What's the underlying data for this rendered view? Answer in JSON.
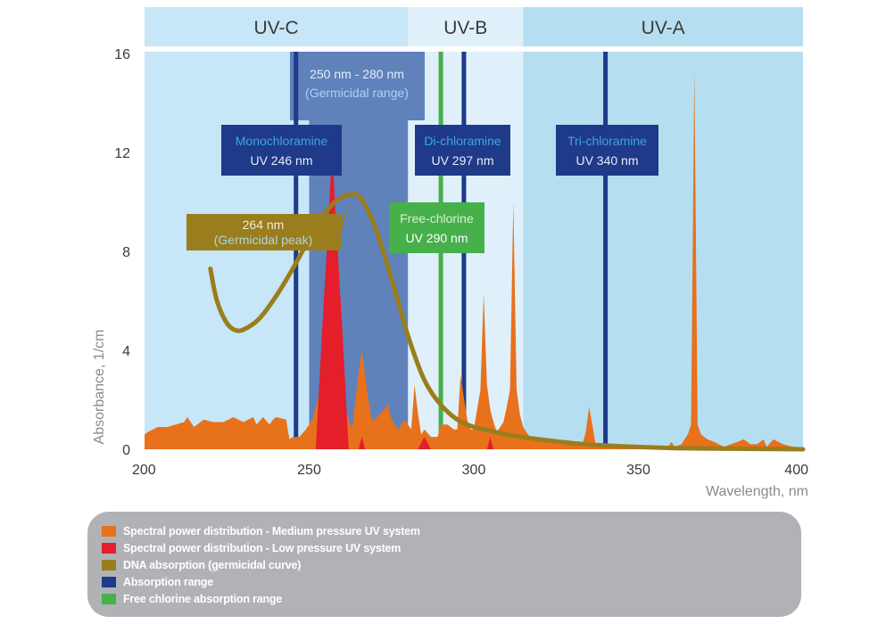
{
  "chart_data": {
    "type": "area",
    "title": "",
    "xlabel": "Wavelength, nm",
    "ylabel": "Absorbance, 1/cm",
    "xlim": [
      200,
      400
    ],
    "ylim": [
      0,
      16
    ],
    "x_ticks": [
      200,
      250,
      300,
      350,
      400
    ],
    "x_tick_labels": [
      "200",
      "250",
      "300",
      "350",
      "400"
    ],
    "y_ticks": [
      0,
      4,
      8,
      12,
      16
    ],
    "y_tick_labels": [
      "0",
      "4",
      "8",
      "12",
      "16"
    ],
    "grid": false,
    "bands": [
      {
        "name": "UV-C",
        "label": "UV-C",
        "range": [
          200,
          280
        ],
        "color": "#c7e6f7"
      },
      {
        "name": "UV-B",
        "label": "UV-B",
        "range": [
          280,
          315
        ],
        "color": "#dff0fb"
      },
      {
        "name": "UV-A",
        "label": "UV-A",
        "range": [
          315,
          400
        ],
        "color": "#b5dff1"
      }
    ],
    "germicidal_range": {
      "range": [
        250,
        280
      ],
      "label_line1": "250 nm - 280 nm",
      "label_line2": "(Germicidal range)",
      "color": "#5f82bb"
    },
    "absorption_lines": [
      {
        "name": "monochloramine",
        "x": 246,
        "label_line1": "Monochloramine",
        "label_line2": "UV 246 nm",
        "color": "#1f3a88"
      },
      {
        "name": "di-chloramine",
        "x": 297,
        "label_line1": "Di-chloramine",
        "label_line2": "UV 297 nm",
        "color": "#1f3a88"
      },
      {
        "name": "tri-chloramine",
        "x": 340,
        "label_line1": "Tri-chloramine",
        "label_line2": "UV 340 nm",
        "color": "#1f3a88"
      },
      {
        "name": "free-chlorine",
        "x": 290,
        "label_line1": "Free-chlorine",
        "label_line2": "UV 290 nm",
        "color": "#46b04a"
      }
    ],
    "annotations": [
      {
        "name": "germicidal-peak",
        "x": 264,
        "label_line1": "264 nm",
        "label_line2": "(Germicidal peak)",
        "color": "#9a7d1c"
      }
    ],
    "series": [
      {
        "name": "Spectral power distribution - Medium pressure UV system",
        "type": "area",
        "color": "#e8711c",
        "x": [
          200,
          201,
          204,
          207,
          212,
          213,
          215,
          218,
          221,
          224,
          227,
          230,
          233,
          234,
          236,
          238,
          239,
          240,
          243,
          244,
          245,
          247,
          249,
          251,
          253,
          255,
          257,
          258,
          260,
          262,
          263,
          265,
          266,
          268,
          269,
          270,
          272,
          274,
          275,
          277,
          279,
          281,
          282,
          283,
          284,
          285,
          287,
          289,
          290,
          292,
          294,
          295,
          296,
          298,
          299,
          300,
          301,
          302,
          303,
          304,
          305,
          306,
          307,
          309,
          310,
          311,
          312,
          313,
          314,
          315,
          317,
          319,
          321,
          324,
          327,
          330,
          333,
          334,
          335,
          336,
          337,
          339,
          342,
          345,
          350,
          355,
          357,
          359,
          360,
          361,
          363,
          365,
          366,
          367,
          368,
          369,
          371,
          373,
          376,
          378,
          380,
          382,
          384,
          386,
          388,
          389,
          391,
          394,
          397,
          400
        ],
        "values": [
          0.6,
          0.7,
          0.9,
          0.9,
          1.1,
          1.3,
          0.9,
          1.2,
          1.1,
          1.1,
          1.3,
          1.1,
          1.3,
          1.0,
          1.3,
          1.0,
          1.2,
          1.3,
          1.2,
          0.4,
          0.5,
          0.5,
          0.8,
          1.2,
          2.2,
          1.8,
          1.6,
          1.4,
          1.8,
          1.2,
          0.8,
          3.1,
          4.0,
          2.0,
          1.2,
          1.2,
          1.5,
          1.8,
          1.2,
          0.8,
          1.2,
          0.8,
          2.6,
          1.5,
          0.6,
          0.8,
          0.5,
          0.5,
          1.0,
          1.0,
          0.8,
          0.8,
          3.0,
          1.2,
          0.8,
          0.8,
          1.6,
          2.4,
          6.3,
          2.6,
          1.6,
          1.1,
          0.7,
          1.1,
          1.7,
          2.4,
          10.0,
          2.4,
          1.4,
          0.9,
          0.5,
          0.4,
          0.3,
          0.3,
          0.2,
          0.2,
          0.2,
          0.7,
          1.7,
          1.0,
          0.2,
          0.2,
          0.1,
          0.1,
          0.1,
          0.1,
          0.1,
          0.1,
          0.3,
          0.1,
          0.2,
          0.6,
          1.0,
          15.3,
          1.0,
          0.6,
          0.4,
          0.3,
          0.1,
          0.2,
          0.3,
          0.4,
          0.2,
          0.2,
          0.4,
          0.1,
          0.4,
          0.2,
          0.1,
          0.0
        ]
      },
      {
        "name": "Spectral power distribution - Low pressure UV system",
        "type": "area",
        "color": "#e41e2b",
        "x": [
          252,
          254,
          256,
          257,
          258,
          260,
          262,
          263,
          265,
          266,
          267,
          283,
          285,
          287,
          304,
          305,
          306
        ],
        "values": [
          0,
          5.0,
          9.5,
          12.3,
          9.5,
          5.0,
          0,
          0,
          0,
          0.5,
          0,
          0,
          0.5,
          0,
          0,
          0.5,
          0
        ]
      },
      {
        "name": "DNA absorption (germicidal curve)",
        "type": "line",
        "color": "#9a7d1c",
        "x": [
          220,
          222,
          225,
          228,
          231,
          235,
          240,
          245,
          250,
          255,
          260,
          263,
          264,
          266,
          270,
          275,
          280,
          285,
          290,
          295,
          300,
          305,
          310,
          320,
          330,
          340,
          360,
          380,
          400
        ],
        "values": [
          7.3,
          6.0,
          5.1,
          4.8,
          4.9,
          5.3,
          6.2,
          7.3,
          8.5,
          9.6,
          10.2,
          10.3,
          10.3,
          10.1,
          9.0,
          6.9,
          4.6,
          2.8,
          1.8,
          1.2,
          0.9,
          0.75,
          0.6,
          0.4,
          0.25,
          0.15,
          0.05,
          0.02,
          0.0
        ]
      },
      {
        "name": "Absorption range",
        "type": "vline",
        "color": "#1f3a88"
      },
      {
        "name": "Free chlorine absorption range",
        "type": "vline",
        "color": "#46b04a"
      }
    ]
  },
  "legend": {
    "placement": "bottom",
    "items": [
      {
        "label": "Spectral power distribution - Medium pressure UV system",
        "color": "#e8711c"
      },
      {
        "label": "Spectral power distribution - Low pressure UV system",
        "color": "#e41e2b"
      },
      {
        "label": "DNA absorption (germicidal curve)",
        "color": "#9a7d1c"
      },
      {
        "label": "Absorption range",
        "color": "#1f3a88"
      },
      {
        "label": "Free chlorine absorption range",
        "color": "#46b04a"
      }
    ]
  }
}
